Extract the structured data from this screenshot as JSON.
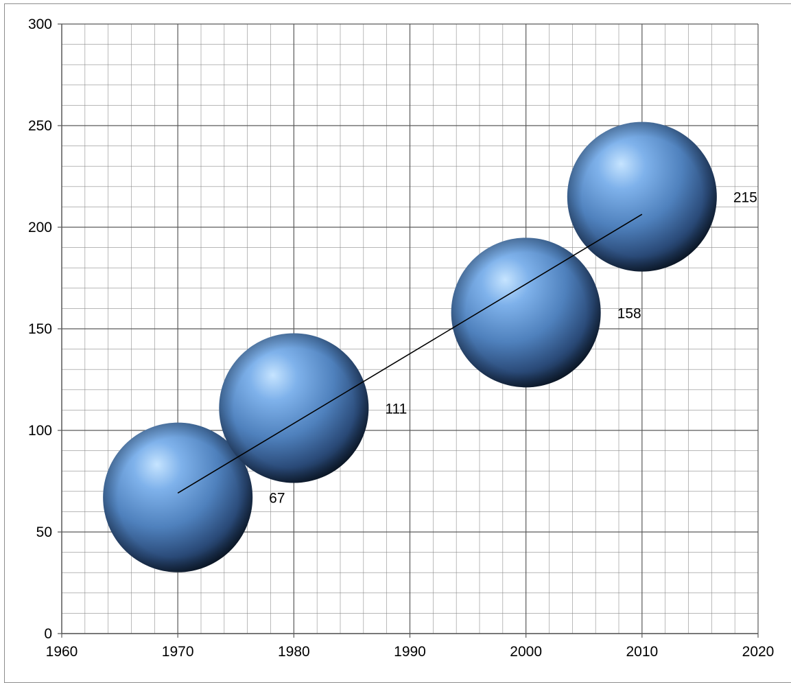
{
  "chart_data": {
    "type": "bubble",
    "x_axis": {
      "min": 1960,
      "max": 2020,
      "major_step": 10,
      "minor_step": 2,
      "tick_labels": [
        "1960",
        "1970",
        "1980",
        "1990",
        "2000",
        "2010",
        "2020"
      ]
    },
    "y_axis": {
      "min": 0,
      "max": 300,
      "major_step": 50,
      "minor_step": 10,
      "tick_labels": [
        "0",
        "50",
        "100",
        "150",
        "200",
        "250",
        "300"
      ]
    },
    "grid": true,
    "legend": "none",
    "points": [
      {
        "x": 1970,
        "y": 67,
        "size": 1,
        "label": "67"
      },
      {
        "x": 1980,
        "y": 111,
        "size": 1,
        "label": "111"
      },
      {
        "x": 2000,
        "y": 158,
        "size": 1,
        "label": "158"
      },
      {
        "x": 2010,
        "y": 215,
        "size": 1,
        "label": "215"
      }
    ],
    "trendline": {
      "type": "linear",
      "x_start": 1970,
      "x_end": 2010
    },
    "colors": {
      "bubble": "#4f81bd",
      "bubble_highlight": "#c6e4ff",
      "bubble_shadow": "#0d1b2e",
      "grid": "#8c8c8c",
      "axis": "#595959",
      "trendline": "#000000",
      "text": "#000000"
    }
  }
}
